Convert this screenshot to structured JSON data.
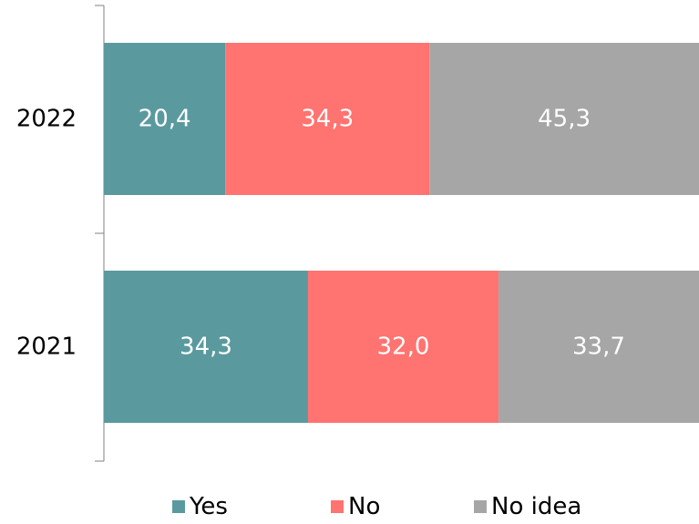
{
  "chart_data": {
    "type": "bar",
    "orientation": "horizontal",
    "stacked": true,
    "categories": [
      "2022",
      "2021"
    ],
    "series": [
      {
        "name": "Yes",
        "values": [
          20.4,
          34.3
        ],
        "labels": [
          "20,4",
          "34,3"
        ],
        "color": "#5a9a9f"
      },
      {
        "name": "No",
        "values": [
          34.3,
          32.0
        ],
        "labels": [
          "34,3",
          "32,0"
        ],
        "color": "#ff7370"
      },
      {
        "name": "No idea",
        "values": [
          45.3,
          33.7
        ],
        "labels": [
          "45,3",
          "33,7"
        ],
        "color": "#a6a6a6"
      }
    ],
    "xlim": [
      0,
      100
    ],
    "grid": false,
    "legend": "bottom",
    "label_color": "#ffffff",
    "axis_color": "#808080"
  }
}
